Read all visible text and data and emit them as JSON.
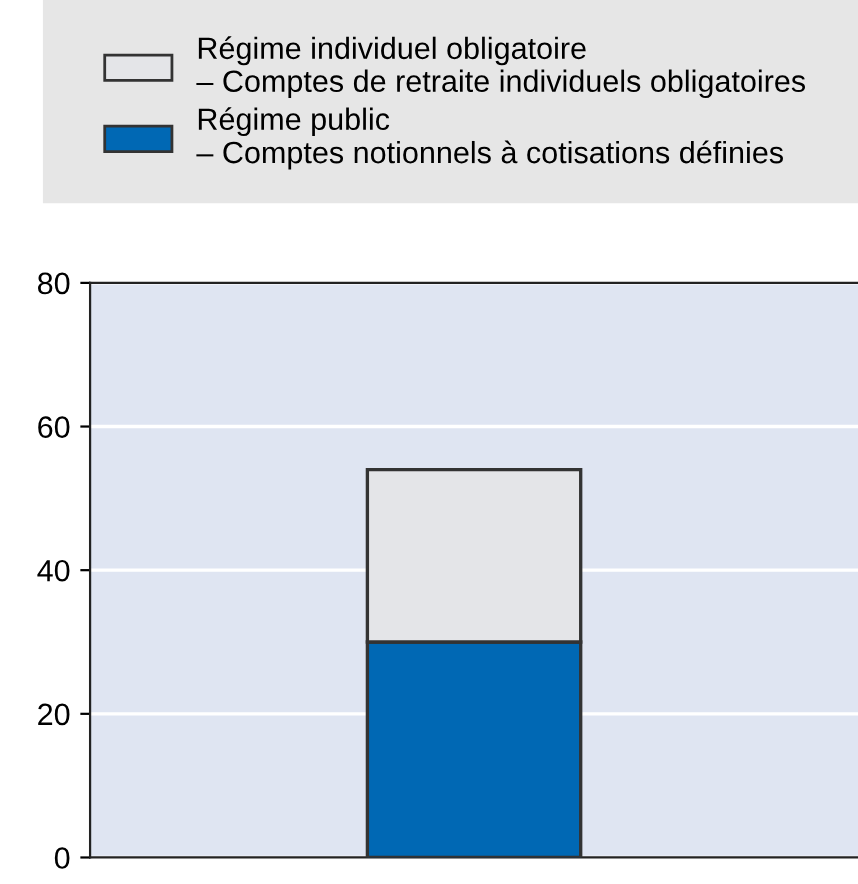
{
  "chart_data": {
    "type": "bar",
    "stacked": true,
    "categories": [
      null
    ],
    "series": [
      {
        "name": "Régime public\n– Comptes notionnels à cotisations définies",
        "color": "#0068b4",
        "values": [
          30
        ]
      },
      {
        "name": "Régime individuel obligatoire\n– Comptes de retraite individuels obligatoires",
        "color": "#e4e5e8",
        "values": [
          24
        ]
      }
    ],
    "ylim": [
      0,
      80
    ],
    "yticks": [
      0,
      20,
      40,
      60,
      80
    ],
    "grid": "y",
    "legend": "top"
  }
}
